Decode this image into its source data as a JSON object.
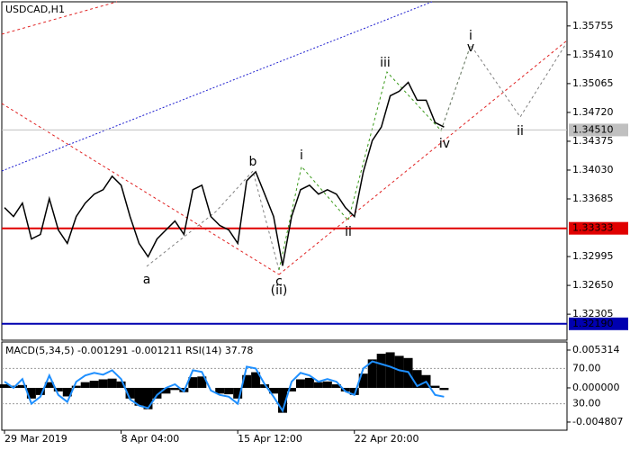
{
  "chart_data": [
    {
      "type": "line",
      "title": "USDCAD,H1",
      "color": "#000000",
      "x": [
        0,
        1,
        2,
        3,
        4,
        5,
        6,
        7,
        8,
        9,
        10,
        11,
        12,
        13,
        14,
        15,
        16,
        17,
        18,
        19,
        20,
        21,
        22,
        23,
        24,
        25,
        26,
        27,
        28,
        29,
        30,
        31,
        32,
        33,
        34,
        35,
        36,
        37,
        38,
        39,
        40,
        41,
        42,
        43,
        44,
        45,
        46,
        47,
        48,
        49
      ],
      "values": [
        1.33581,
        1.33474,
        1.33634,
        1.33206,
        1.3326,
        1.33688,
        1.33313,
        1.33153,
        1.33474,
        1.33634,
        1.33742,
        1.33795,
        1.33956,
        1.33849,
        1.33474,
        1.33153,
        1.32992,
        1.33206,
        1.33313,
        1.3342,
        1.3326,
        1.33795,
        1.33849,
        1.33474,
        1.33367,
        1.33313,
        1.33153,
        1.33902,
        1.34009,
        1.33742,
        1.33474,
        1.32885,
        1.33474,
        1.33795,
        1.33849,
        1.33742,
        1.33795,
        1.33742,
        1.33581,
        1.33474,
        1.34009,
        1.34384,
        1.34545,
        1.3492,
        1.34973,
        1.3508,
        1.34866,
        1.34866,
        1.34598,
        1.34545
      ],
      "xlim": [
        -0.3,
        62.7
      ],
      "xticks": [
        {
          "value": 0,
          "label": "29 Mar 2019"
        },
        {
          "value": 13,
          "label": "8 Apr 04:00"
        },
        {
          "value": 26,
          "label": "15 Apr 12:00"
        },
        {
          "value": 39,
          "label": "22 Apr 20:00"
        }
      ],
      "ylim": [
        1.31994,
        1.36044
      ],
      "yticks": [
        1.35755,
        {
          "value": 1.3541,
          "label": "1.35410"
        },
        1.35065,
        {
          "value": 1.3472,
          "label": "1.34720"
        },
        1.34375,
        {
          "value": 1.3403,
          "label": "1.34030"
        },
        1.33685,
        1.32995,
        {
          "value": 1.3265,
          "label": "1.32650"
        },
        1.32305
      ],
      "levels": [
        {
          "value": 1.3451,
          "label": "1.34510",
          "color": "#c0c0c0"
        },
        {
          "value": 1.33333,
          "label": "1.33333",
          "color": "#e00000"
        },
        {
          "value": 1.3219,
          "label": "1.32190",
          "color": "#0000b0"
        }
      ],
      "annotations": [
        {
          "text": "i",
          "color": "#707070"
        },
        {
          "text": "v",
          "color": "#3a9a1a"
        },
        {
          "text": "iii",
          "color": "#3a9a1a"
        },
        {
          "text": "i",
          "color": "#3a9a1a"
        },
        {
          "text": "b",
          "color": "#707070"
        },
        {
          "text": "a",
          "color": "#707070"
        },
        {
          "text": "c",
          "color": "#707070"
        },
        {
          "text": "(ii)",
          "color": "#d00000"
        },
        {
          "text": "ii",
          "color": "#3a9a1a"
        },
        {
          "text": "iv",
          "color": "#3a9a1a"
        },
        {
          "text": "ii",
          "color": "#707070"
        }
      ]
    },
    {
      "type": "bar",
      "title": "MACD(5,34,5) -0.001291 -0.001211 RSI(14) 37.78",
      "color": "#000000",
      "values": [
        0.0005,
        0.0003,
        0.0004,
        -0.0015,
        -0.001,
        0.0008,
        -0.0005,
        -0.0012,
        0.0003,
        0.0008,
        0.001,
        0.0012,
        0.0013,
        0.0009,
        -0.0015,
        -0.0025,
        -0.003,
        -0.0015,
        -0.0008,
        -0.0003,
        -0.0006,
        0.0015,
        0.0016,
        0,
        -0.0008,
        -0.0009,
        -0.0015,
        0.0018,
        0.0022,
        0.0005,
        -0.0008,
        -0.0035,
        -0.0005,
        0.0012,
        0.0014,
        0.0008,
        0.0009,
        0.0005,
        -0.0005,
        -0.001,
        0.002,
        0.004,
        0.0048,
        0.005,
        0.0045,
        0.0042,
        0.0025,
        0.0018,
        0.0003,
        -0.0003
      ],
      "line_color": "#1e8fff",
      "line_values": [
        55,
        48,
        58,
        30,
        38,
        62,
        40,
        32,
        55,
        62,
        65,
        63,
        68,
        58,
        35,
        28,
        25,
        40,
        48,
        52,
        44,
        68,
        66,
        45,
        40,
        38,
        30,
        72,
        70,
        52,
        38,
        22,
        55,
        65,
        62,
        55,
        58,
        55,
        44,
        40,
        70,
        78,
        75,
        72,
        68,
        66,
        50,
        55,
        40,
        38
      ],
      "ylim": [
        -0.00595,
        0.00645
      ],
      "yticks": [
        0.005314,
        {
          "value": 0,
          "label": "0.000000"
        },
        -0.004807
      ],
      "y2lim": [
        0,
        100
      ],
      "y2ticks": [
        {
          "value": 70,
          "label": "70.00"
        },
        {
          "value": 30,
          "label": "30.00"
        }
      ]
    }
  ]
}
